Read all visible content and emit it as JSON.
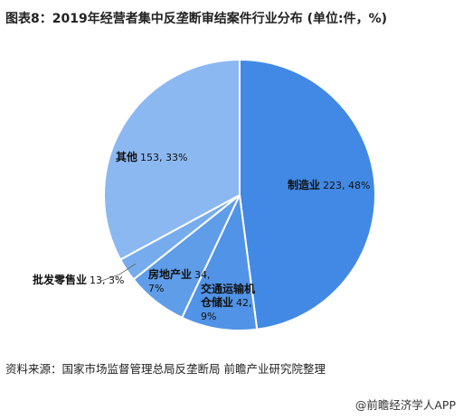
{
  "chart_data": {
    "type": "pie",
    "title": "图表8：2019年经营者集中反垄断审结案件行业分布 (单位:件，%)",
    "categories": [
      "制造业",
      "交通运输机仓储业",
      "房地产业",
      "批发零售业",
      "其他"
    ],
    "values": [
      223,
      42,
      34,
      13,
      153
    ],
    "value_labels": [
      "223, 48%",
      "42, 9%",
      "34, 7%",
      "13, 3%",
      "153, 33%"
    ],
    "colors": [
      "#4189e4",
      "#5193e6",
      "#5f9de9",
      "#76acee",
      "#8cb8f1"
    ]
  },
  "source": "资料来源：国家市场监督管理总局反垄断局 前瞻产业研究院整理",
  "brand": "@前瞻经济学人APP"
}
